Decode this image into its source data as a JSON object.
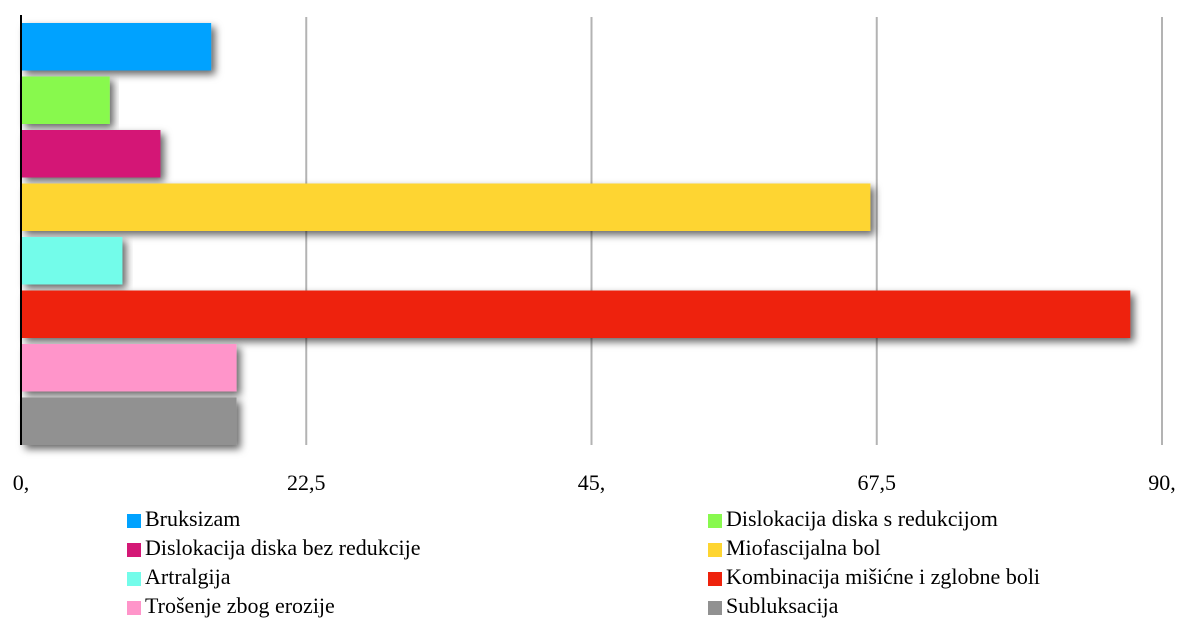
{
  "chart_data": {
    "type": "bar",
    "orientation": "horizontal",
    "series": [
      {
        "name": "Bruksizam",
        "color": "#00a2ff",
        "values": [
          15
        ]
      },
      {
        "name": "Dislokacija diska s redukcijom",
        "color": "#88f94e",
        "values": [
          7
        ]
      },
      {
        "name": "Dislokacija diska bez redukcije",
        "color": "#d41876",
        "values": [
          11
        ]
      },
      {
        "name": "Miofascijalna bol",
        "color": "#fed531",
        "values": [
          67
        ]
      },
      {
        "name": "Artralgija",
        "color": "#73fcea",
        "values": [
          8
        ]
      },
      {
        "name": "Kombinacija mišićne i zglobne boli",
        "color": "#ee220c",
        "values": [
          87.5
        ]
      },
      {
        "name": "Trošenje zbog erozije",
        "color": "#ff95ca",
        "values": [
          17
        ]
      },
      {
        "name": "Subluksacija",
        "color": "#919191",
        "values": [
          17
        ]
      }
    ],
    "xlim": [
      0,
      90
    ],
    "xticks": [
      {
        "value": 0,
        "label": "0,"
      },
      {
        "value": 22.5,
        "label": "22,5"
      },
      {
        "value": 45,
        "label": "45,"
      },
      {
        "value": 67.5,
        "label": "67,5"
      },
      {
        "value": 90,
        "label": "90,"
      }
    ],
    "grid": true
  }
}
